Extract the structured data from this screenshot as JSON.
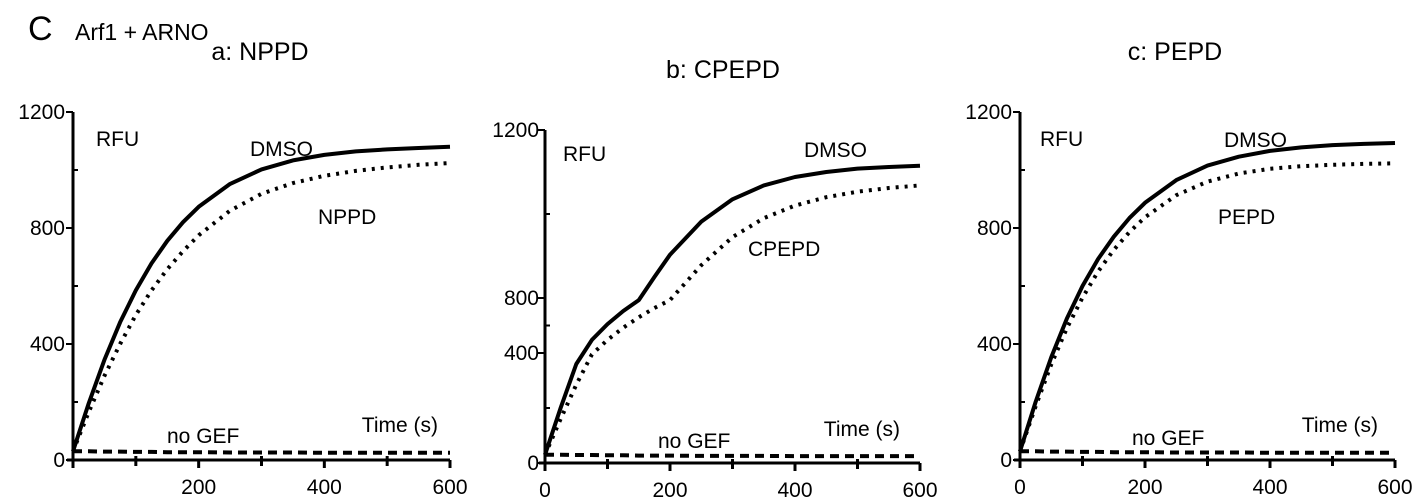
{
  "figure": {
    "panel_letter": "C",
    "panel_title": "Arf1 + ARNO"
  },
  "chart_data": [
    {
      "type": "line",
      "title": "a: NPPD",
      "ylabel": "RFU",
      "xlabel": "Time (s)",
      "xlim": [
        0,
        600
      ],
      "ylim": [
        0,
        1200
      ],
      "xticks": [
        0,
        200,
        400,
        600
      ],
      "xtick_labels": [
        "",
        "200",
        "400",
        "600"
      ],
      "yticks": [
        0,
        400,
        800,
        1200
      ],
      "ytick_labels": [
        "0",
        "400",
        "800",
        "1200"
      ],
      "x": [
        0,
        25,
        50,
        75,
        100,
        125,
        150,
        175,
        200,
        250,
        300,
        350,
        400,
        450,
        500,
        550,
        600
      ],
      "series": [
        {
          "name": "DMSO",
          "style": "solid",
          "values": [
            30,
            195,
            345,
            475,
            585,
            678,
            756,
            820,
            873,
            952,
            1002,
            1033,
            1052,
            1064,
            1071,
            1076,
            1080
          ]
        },
        {
          "name": "NPPD",
          "style": "dotted",
          "values": [
            30,
            165,
            290,
            400,
            500,
            585,
            658,
            720,
            775,
            860,
            918,
            955,
            980,
            997,
            1009,
            1018,
            1024
          ]
        },
        {
          "name": "no GEF",
          "style": "dashed",
          "values": [
            30,
            30,
            29,
            29,
            28,
            28,
            27,
            27,
            27,
            26,
            26,
            26,
            25,
            25,
            25,
            25,
            25
          ]
        }
      ]
    },
    {
      "type": "line",
      "title": "b: CPEPD",
      "ylabel": "RFU",
      "xlabel": "Time (s)",
      "xlim": [
        0,
        600
      ],
      "ylim": [
        0,
        1200
      ],
      "xticks": [
        0,
        200,
        400,
        600
      ],
      "xtick_labels": [
        "0",
        "200",
        "400",
        "600"
      ],
      "yticks": [
        0,
        400,
        800,
        1200
      ],
      "ytick_labels": [
        "0",
        "400",
        "800",
        "1200"
      ],
      "x": [
        0,
        25,
        50,
        75,
        100,
        125,
        150,
        175,
        200,
        250,
        300,
        350,
        400,
        450,
        500,
        550,
        600
      ],
      "series": [
        {
          "name": "DMSO",
          "style": "solid",
          "values": [
            30,
            200,
            360,
            495,
            610,
            705,
            785,
            850,
            903,
            982,
            1035,
            1068,
            1088,
            1100,
            1108,
            1112,
            1115
          ]
        },
        {
          "name": "CPEPD",
          "style": "dotted",
          "values": [
            30,
            160,
            285,
            395,
            495,
            583,
            660,
            727,
            785,
            878,
            945,
            990,
            1020,
            1040,
            1053,
            1062,
            1068
          ]
        },
        {
          "name": "no GEF",
          "style": "dashed",
          "values": [
            30,
            30,
            29,
            29,
            28,
            28,
            27,
            27,
            27,
            26,
            26,
            26,
            25,
            25,
            25,
            25,
            25
          ]
        }
      ]
    },
    {
      "type": "line",
      "title": "c: PEPD",
      "ylabel": "RFU",
      "xlabel": "Time (s)",
      "xlim": [
        0,
        600
      ],
      "ylim": [
        0,
        1200
      ],
      "xticks": [
        0,
        200,
        400,
        600
      ],
      "xtick_labels": [
        "0",
        "200",
        "400",
        "600"
      ],
      "yticks": [
        0,
        400,
        800,
        1200
      ],
      "ytick_labels": [
        "0",
        "400",
        "800",
        "1200"
      ],
      "x": [
        0,
        25,
        50,
        75,
        100,
        125,
        150,
        175,
        200,
        250,
        300,
        350,
        400,
        450,
        500,
        550,
        600
      ],
      "series": [
        {
          "name": "DMSO",
          "style": "solid",
          "values": [
            30,
            200,
            355,
            488,
            600,
            693,
            770,
            834,
            887,
            965,
            1015,
            1046,
            1066,
            1078,
            1086,
            1090,
            1093
          ]
        },
        {
          "name": "PEPD",
          "style": "dotted",
          "values": [
            30,
            185,
            330,
            455,
            560,
            650,
            725,
            786,
            837,
            913,
            960,
            988,
            1004,
            1013,
            1018,
            1021,
            1023
          ]
        },
        {
          "name": "no GEF",
          "style": "dashed",
          "values": [
            30,
            30,
            29,
            29,
            28,
            28,
            27,
            27,
            27,
            26,
            26,
            26,
            25,
            25,
            25,
            25,
            25
          ]
        }
      ]
    }
  ]
}
